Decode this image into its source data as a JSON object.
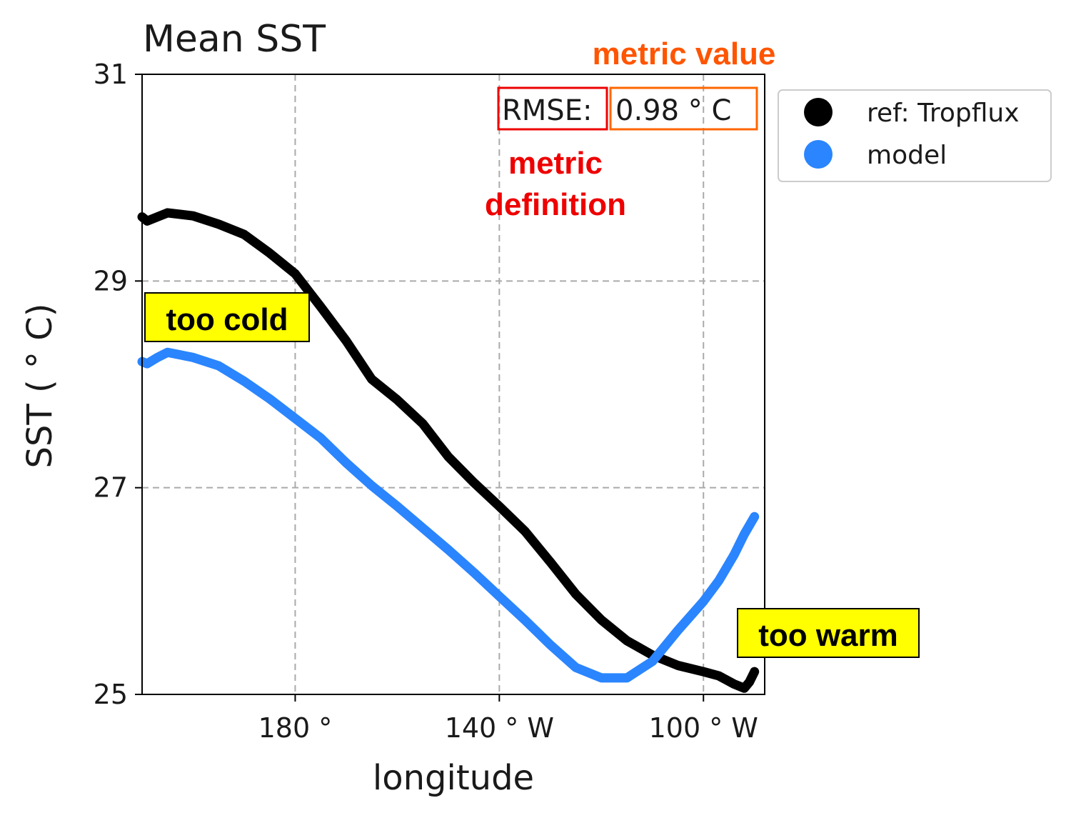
{
  "chart_data": {
    "type": "line",
    "title": "Mean SST",
    "xlabel": "longitude",
    "ylabel": "SST ($^\\circ$C)",
    "ylabel_display": "SST ( ° C)",
    "xlim": [
      150,
      272
    ],
    "ylim": [
      25,
      31
    ],
    "x_ticks": [
      {
        "value": 180,
        "label": "180 °"
      },
      {
        "value": 220,
        "label": "140 ° W"
      },
      {
        "value": 260,
        "label": "100 ° W"
      }
    ],
    "y_ticks": [
      {
        "value": 25,
        "label": "25"
      },
      {
        "value": 27,
        "label": "27"
      },
      {
        "value": 29,
        "label": "29"
      },
      {
        "value": 31,
        "label": "31"
      }
    ],
    "grid": true,
    "legend_position": "outside-top-right",
    "series": [
      {
        "name": "ref: Tropflux",
        "color": "#000000",
        "x": [
          150,
          151,
          153,
          155,
          160,
          165,
          170,
          175,
          180,
          185,
          190,
          195,
          200,
          205,
          210,
          215,
          220,
          225,
          230,
          235,
          240,
          245,
          250,
          255,
          260,
          263,
          266,
          268,
          269,
          270
        ],
        "y": [
          29.62,
          29.58,
          29.62,
          29.66,
          29.63,
          29.55,
          29.45,
          29.27,
          29.07,
          28.75,
          28.42,
          28.05,
          27.85,
          27.62,
          27.3,
          27.05,
          26.82,
          26.58,
          26.28,
          25.97,
          25.72,
          25.52,
          25.38,
          25.28,
          25.22,
          25.18,
          25.1,
          25.06,
          25.12,
          25.22
        ]
      },
      {
        "name": "model",
        "color": "#2a85ff",
        "x": [
          150,
          151,
          153,
          155,
          160,
          165,
          170,
          175,
          180,
          185,
          190,
          195,
          200,
          205,
          210,
          215,
          220,
          225,
          230,
          235,
          240,
          245,
          250,
          255,
          260,
          263,
          266,
          268,
          270
        ],
        "y": [
          28.22,
          28.2,
          28.26,
          28.31,
          28.26,
          28.18,
          28.03,
          27.86,
          27.67,
          27.48,
          27.24,
          27.02,
          26.82,
          26.61,
          26.4,
          26.18,
          25.95,
          25.72,
          25.48,
          25.26,
          25.16,
          25.16,
          25.32,
          25.62,
          25.9,
          26.1,
          26.35,
          26.55,
          26.72
        ]
      }
    ],
    "metric": {
      "definition_label": "RMSE:",
      "value_label": "0.98 ° C"
    },
    "annotations": {
      "metric_value_label": "metric value",
      "metric_definition_line1": "metric",
      "metric_definition_line2": "definition",
      "too_cold": "too cold",
      "too_warm": "too warm"
    },
    "colors": {
      "metric_definition": "#ee0000",
      "metric_value": "#ff5500",
      "callout_fill": "#ffff00"
    }
  }
}
